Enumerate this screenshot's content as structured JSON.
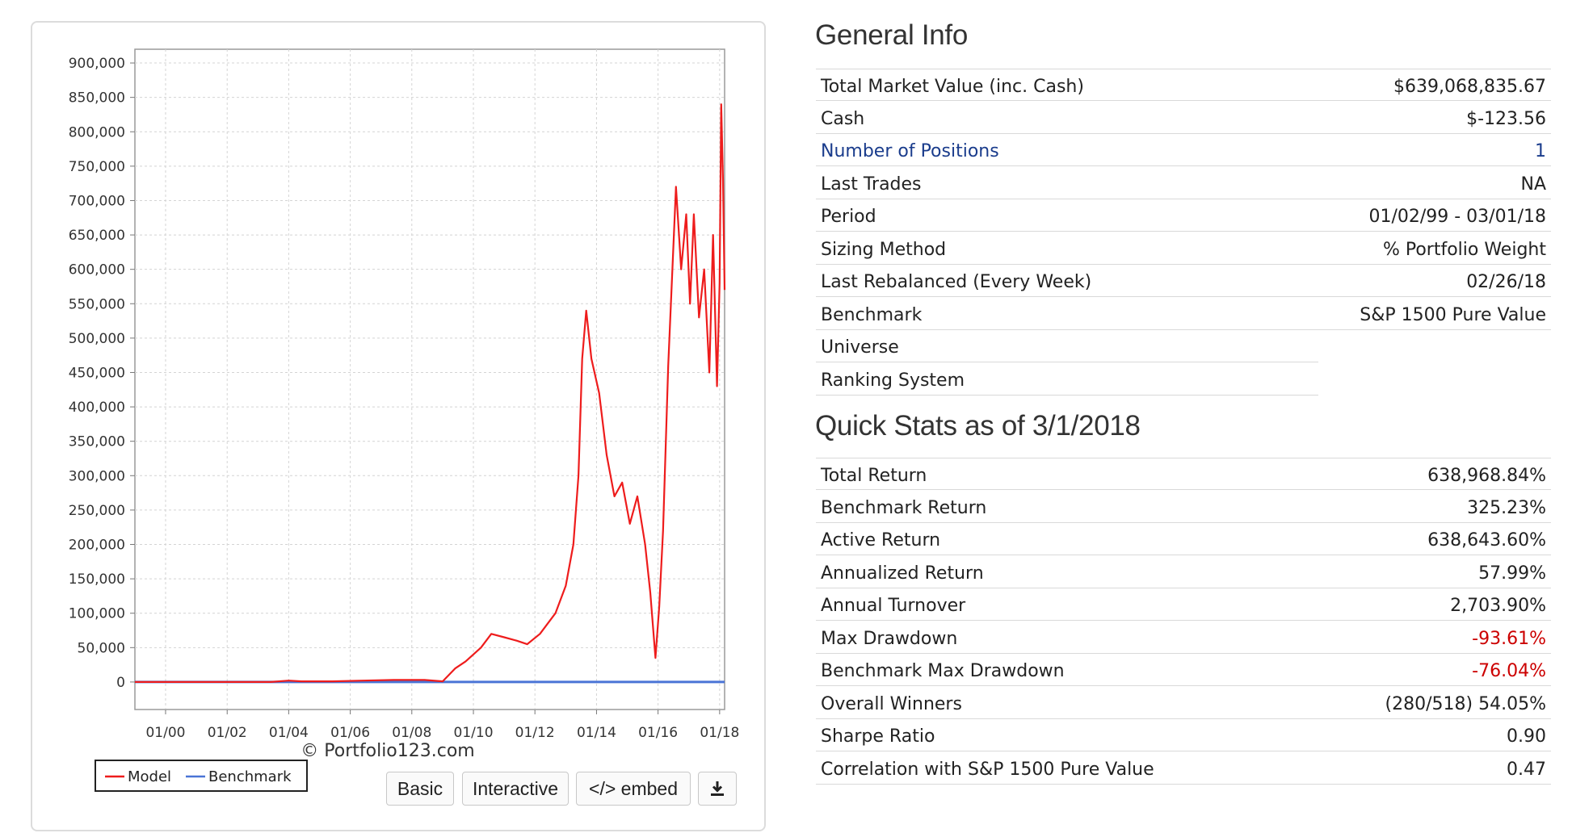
{
  "chart_panel": {
    "legend": [
      {
        "label": "Model",
        "color": "#ee1c1c"
      },
      {
        "label": "Benchmark",
        "color": "#4a74d6"
      }
    ],
    "watermark": "© Portfolio123.com",
    "buttons": {
      "basic": "Basic",
      "interactive": "Interactive",
      "embed": "</> embed",
      "download_icon": "download-icon"
    }
  },
  "chart_data": {
    "type": "line",
    "title": "",
    "xlabel": "",
    "ylabel": "",
    "ylim": [
      -40000,
      920000
    ],
    "xlim": [
      "1999-01-02",
      "2018-03-01"
    ],
    "y_ticks": [
      0,
      50000,
      100000,
      150000,
      200000,
      250000,
      300000,
      350000,
      400000,
      450000,
      500000,
      550000,
      600000,
      650000,
      700000,
      750000,
      800000,
      850000,
      900000
    ],
    "y_tick_labels": [
      "0",
      "50,000",
      "100,000",
      "150,000",
      "200,000",
      "250,000",
      "300,000",
      "350,000",
      "400,000",
      "450,000",
      "500,000",
      "550,000",
      "600,000",
      "650,000",
      "700,000",
      "750,000",
      "800,000",
      "850,000",
      "900,000"
    ],
    "x_ticks": [
      "2000-01-01",
      "2002-01-01",
      "2004-01-01",
      "2006-01-01",
      "2008-01-01",
      "2010-01-01",
      "2012-01-01",
      "2014-01-01",
      "2016-01-01",
      "2018-01-01"
    ],
    "x_tick_labels": [
      "01/00",
      "01/02",
      "01/04",
      "01/06",
      "01/08",
      "01/10",
      "01/12",
      "01/14",
      "01/16",
      "01/18"
    ],
    "grid": true,
    "legend_position": "bottom-left",
    "series": [
      {
        "name": "Model",
        "color": "#ee1c1c",
        "x": [
          "1999-01-02",
          "2000-01-01",
          "2002-01-01",
          "2003-06-01",
          "2004-01-01",
          "2004-06-01",
          "2005-06-01",
          "2006-06-01",
          "2007-06-01",
          "2008-06-01",
          "2009-01-01",
          "2009-06-01",
          "2009-10-01",
          "2010-04-01",
          "2010-08-01",
          "2011-01-01",
          "2011-06-01",
          "2011-10-01",
          "2012-03-01",
          "2012-09-01",
          "2013-01-01",
          "2013-04-01",
          "2013-06-01",
          "2013-07-15",
          "2013-09-01",
          "2013-11-01",
          "2014-02-01",
          "2014-05-01",
          "2014-08-01",
          "2014-11-01",
          "2015-02-01",
          "2015-05-01",
          "2015-08-01",
          "2015-10-01",
          "2015-12-01",
          "2016-01-15",
          "2016-03-01",
          "2016-05-01",
          "2016-08-01",
          "2016-10-01",
          "2016-12-01",
          "2017-01-15",
          "2017-03-01",
          "2017-05-01",
          "2017-07-01",
          "2017-09-01",
          "2017-10-15",
          "2017-12-01",
          "2018-01-01",
          "2018-01-20",
          "2018-02-10",
          "2018-03-01"
        ],
        "values": [
          0,
          0,
          0,
          0,
          2000,
          1000,
          1000,
          2000,
          3000,
          3000,
          1000,
          20000,
          30000,
          50000,
          70000,
          65000,
          60000,
          55000,
          70000,
          100000,
          140000,
          200000,
          300000,
          470000,
          540000,
          470000,
          420000,
          330000,
          270000,
          290000,
          230000,
          270000,
          200000,
          130000,
          35000,
          110000,
          220000,
          460000,
          720000,
          600000,
          680000,
          550000,
          680000,
          530000,
          600000,
          450000,
          650000,
          430000,
          580000,
          840000,
          730000,
          570000
        ]
      },
      {
        "name": "Benchmark",
        "color": "#4a74d6",
        "x": [
          "1999-01-02",
          "2018-03-01"
        ],
        "values": [
          0,
          0
        ]
      }
    ]
  },
  "general_info": {
    "title": "General Info",
    "rows": [
      {
        "label": "Total Market Value (inc. Cash)",
        "value": "$639,068,835.67"
      },
      {
        "label": "Cash",
        "value": "$-123.56"
      },
      {
        "label": "Number of Positions",
        "value": "1"
      },
      {
        "label": "Last Trades",
        "value": "NA"
      },
      {
        "label": "Period",
        "value": "01/02/99 - 03/01/18"
      },
      {
        "label": "Sizing Method",
        "value": "% Portfolio Weight"
      },
      {
        "label": "Last Rebalanced (Every Week)",
        "value": "02/26/18"
      },
      {
        "label": "Benchmark",
        "value": "S&P 1500 Pure Value"
      },
      {
        "label": "Universe",
        "value": ""
      },
      {
        "label": "Ranking System",
        "value": ""
      }
    ]
  },
  "quick_stats": {
    "title": "Quick Stats as of 3/1/2018",
    "rows": [
      {
        "label": "Total Return",
        "value": "638,968.84%"
      },
      {
        "label": "Benchmark Return",
        "value": "325.23%"
      },
      {
        "label": "Active Return",
        "value": "638,643.60%"
      },
      {
        "label": "Annualized Return",
        "value": "57.99%"
      },
      {
        "label": "Annual Turnover",
        "value": "2,703.90%"
      },
      {
        "label": "Max Drawdown",
        "value": "-93.61%"
      },
      {
        "label": "Benchmark Max Drawdown",
        "value": "-76.04%"
      },
      {
        "label": "Overall Winners",
        "value": "(280/518) 54.05%"
      },
      {
        "label": "Sharpe Ratio",
        "value": "0.90"
      },
      {
        "label": "Correlation with S&P 1500 Pure Value",
        "value": "0.47"
      }
    ]
  }
}
